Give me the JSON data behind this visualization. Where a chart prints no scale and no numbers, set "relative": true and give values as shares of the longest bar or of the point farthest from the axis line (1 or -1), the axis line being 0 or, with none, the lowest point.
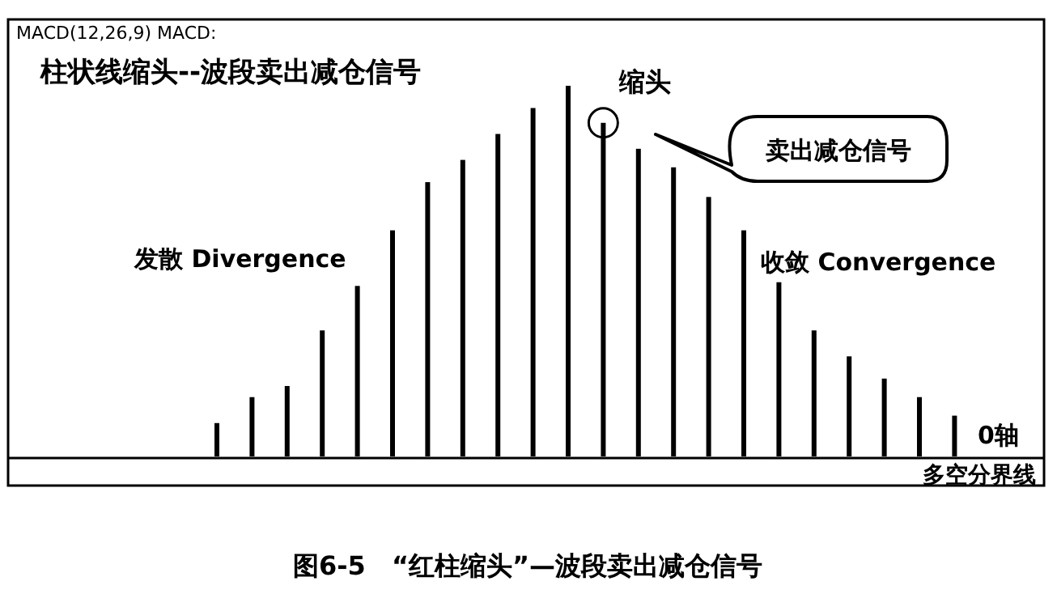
{
  "chart_data": {
    "type": "bar",
    "relative": true,
    "title": "柱状线缩头--波段卖出减仓信号",
    "subtitle": "MACD(12,26,9) MACD:",
    "categories": [
      null,
      null,
      null,
      null,
      null,
      null,
      null,
      null,
      null,
      null,
      null,
      null,
      null,
      null,
      null,
      null,
      null,
      null,
      null,
      null,
      null,
      null
    ],
    "values": [
      0.09,
      0.16,
      0.19,
      0.34,
      0.46,
      0.61,
      0.74,
      0.8,
      0.87,
      0.94,
      1,
      0.9,
      0.83,
      0.78,
      0.7,
      0.61,
      0.47,
      0.34,
      0.27,
      0.21,
      0.16,
      0.11
    ],
    "color": "#000000",
    "annotations": [
      "缩头",
      "卖出减仓信号",
      "发散 Divergence",
      "收敛 Convergence",
      "0轴",
      "多空分界线",
      "图6-5　“红柱缩头”—波段卖出减仓信号"
    ]
  }
}
